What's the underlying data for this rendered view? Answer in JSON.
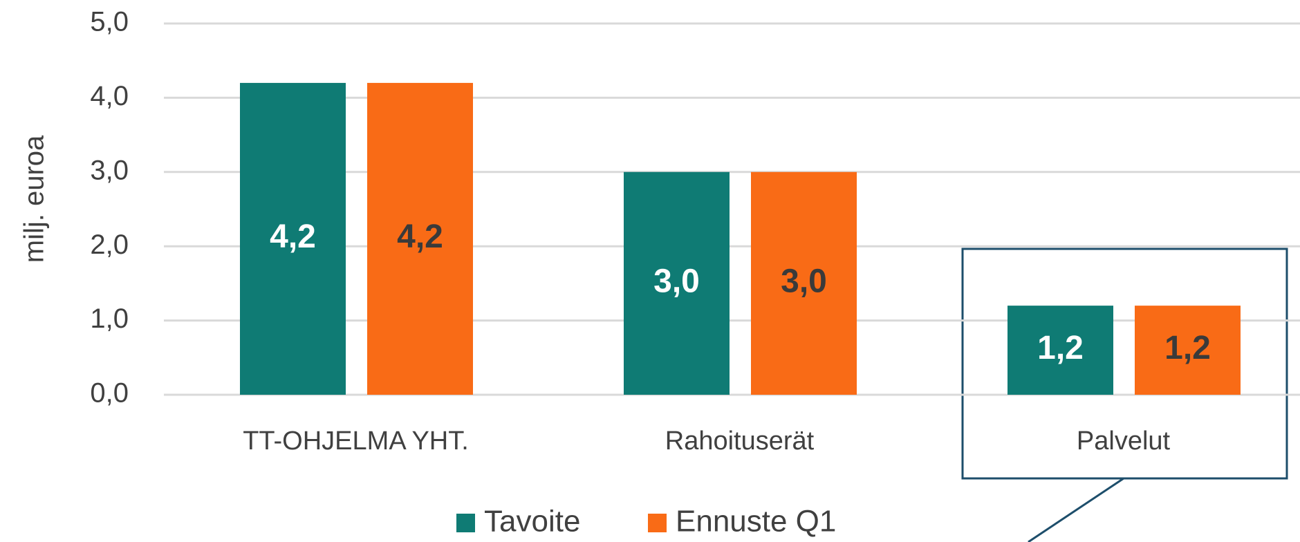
{
  "chart_data": {
    "type": "bar",
    "y_label": "milj. euroa",
    "categories": [
      "TT-OHJELMA YHT.",
      "Rahoituserät",
      "Palvelut"
    ],
    "series": [
      {
        "name": "Tavoite",
        "color": "#0f7b74",
        "values": [
          4.2,
          3.0,
          1.2
        ],
        "value_labels": [
          "4,2",
          "3,0",
          "1,2"
        ]
      },
      {
        "name": "Ennuste Q1",
        "color": "#f96b16",
        "values": [
          4.2,
          3.0,
          1.2
        ],
        "value_labels": [
          "4,2",
          "3,0",
          "1,2"
        ]
      }
    ],
    "ylim": [
      0,
      5
    ],
    "yticks": [
      {
        "value": 0,
        "label": "0,0"
      },
      {
        "value": 1,
        "label": "1,0"
      },
      {
        "value": 2,
        "label": "2,0"
      },
      {
        "value": 3,
        "label": "3,0"
      },
      {
        "value": 4,
        "label": "4,0"
      },
      {
        "value": 5,
        "label": "5,0"
      }
    ],
    "grid": true,
    "legend": "bottom"
  }
}
